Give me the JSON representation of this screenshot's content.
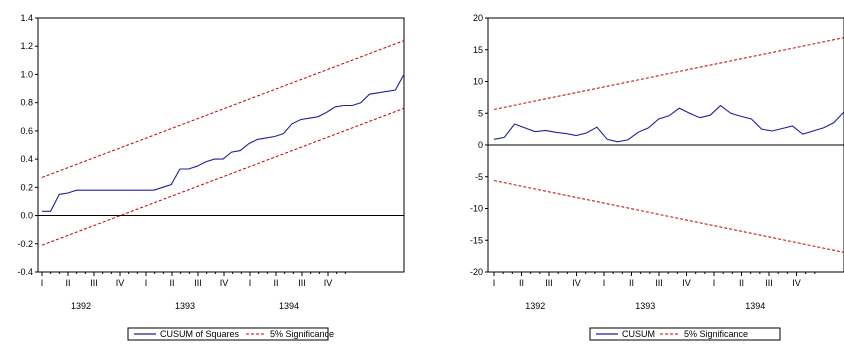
{
  "chart_data": [
    {
      "type": "line",
      "title": "",
      "xlabel": "",
      "ylabel": "",
      "ylim": [
        -0.4,
        1.4
      ],
      "yticks": [
        "-0.4",
        "-0.2",
        "0.0",
        "0.2",
        "0.4",
        "0.6",
        "0.8",
        "1.0",
        "1.2",
        "1.4"
      ],
      "quarter_labels": [
        "I",
        "II",
        "III",
        "IV",
        "I",
        "II",
        "III",
        "IV",
        "I",
        "II",
        "III",
        "IV"
      ],
      "year_labels": [
        "1392",
        "1393",
        "1394"
      ],
      "zero_line": true,
      "legend": [
        "CUSUM of Squares",
        "5% Significance"
      ],
      "series": [
        {
          "name": "CUSUM of Squares",
          "color": "#2020a0",
          "style": "solid",
          "values": [
            0.03,
            0.03,
            0.15,
            0.16,
            0.18,
            0.18,
            0.18,
            0.18,
            0.18,
            0.18,
            0.18,
            0.18,
            0.18,
            0.18,
            0.2,
            0.22,
            0.33,
            0.33,
            0.35,
            0.38,
            0.4,
            0.4,
            0.45,
            0.46,
            0.51,
            0.54,
            0.55,
            0.56,
            0.58,
            0.65,
            0.68,
            0.69,
            0.7,
            0.73,
            0.77,
            0.78,
            0.78,
            0.8,
            0.86,
            0.87,
            0.88,
            0.89,
            1.0
          ]
        },
        {
          "name": "5% Significance",
          "color": "#c00000",
          "style": "dashed",
          "bands": [
            {
              "from": 0.27,
              "to": 1.24
            },
            {
              "from": -0.21,
              "to": 0.76
            }
          ]
        }
      ]
    },
    {
      "type": "line",
      "title": "",
      "xlabel": "",
      "ylabel": "",
      "ylim": [
        -20,
        20
      ],
      "yticks": [
        "-20",
        "-15",
        "-10",
        "-5",
        "0",
        "5",
        "10",
        "15",
        "20"
      ],
      "quarter_labels": [
        "I",
        "II",
        "III",
        "IV",
        "I",
        "II",
        "III",
        "IV",
        "I",
        "II",
        "III",
        "IV"
      ],
      "year_labels": [
        "1392",
        "1393",
        "1394"
      ],
      "zero_line": true,
      "legend": [
        "CUSUM",
        "5% Significance"
      ],
      "series": [
        {
          "name": "CUSUM",
          "color": "#2020a0",
          "style": "solid",
          "values": [
            0.9,
            1.2,
            3.3,
            2.7,
            2.1,
            2.3,
            2.0,
            1.8,
            1.5,
            1.9,
            2.8,
            0.9,
            0.5,
            0.8,
            2.0,
            2.7,
            4.1,
            4.6,
            5.8,
            5.0,
            4.3,
            4.7,
            6.2,
            5.0,
            4.5,
            4.1,
            2.5,
            2.2,
            2.6,
            3.0,
            1.7,
            2.2,
            2.7,
            3.5,
            5.2
          ]
        },
        {
          "name": "5% Significance",
          "color": "#c00000",
          "style": "dashed",
          "bands": [
            {
              "from": 5.6,
              "to": 16.9
            },
            {
              "from": -5.6,
              "to": -16.9
            }
          ]
        }
      ]
    }
  ]
}
